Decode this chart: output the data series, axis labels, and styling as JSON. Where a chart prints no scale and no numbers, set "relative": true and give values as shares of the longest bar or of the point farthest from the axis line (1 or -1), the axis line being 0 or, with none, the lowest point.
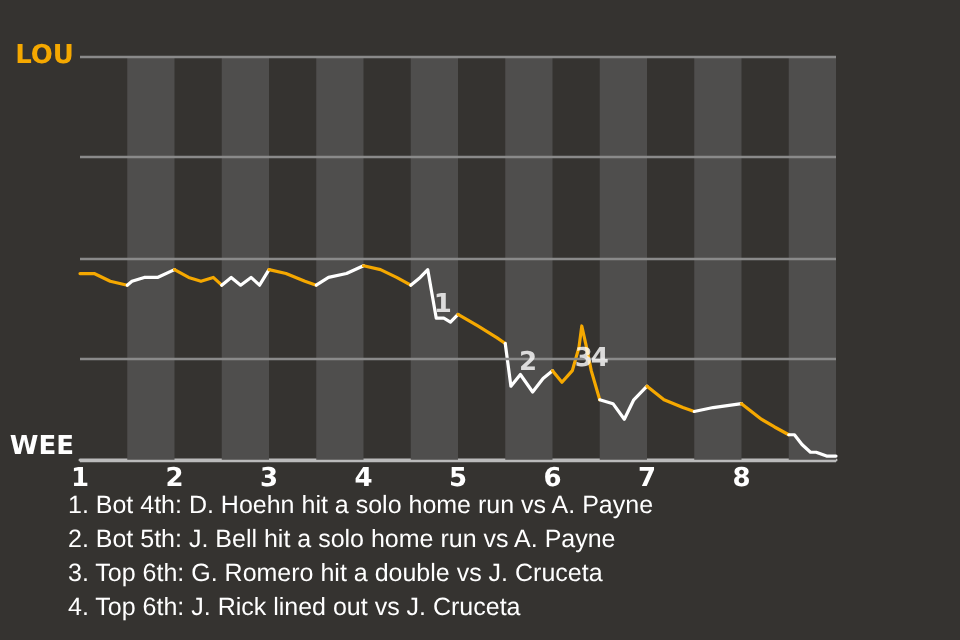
{
  "chart_data": {
    "type": "line",
    "relative": true,
    "xlim": [
      1,
      9
    ],
    "xticks": [
      1,
      2,
      3,
      4,
      5,
      6,
      7,
      8
    ],
    "ref_lines": [
      {
        "axis": "y",
        "value": 2.08,
        "label": "LOU",
        "color": "#8a8a8a"
      },
      {
        "axis": "y",
        "value": 1.56,
        "label": null,
        "color": "#8a8a8a"
      },
      {
        "axis": "y",
        "value": 1.04,
        "label": null,
        "color": "#8a8a8a"
      },
      {
        "axis": "y",
        "value": 0.52,
        "label": null,
        "color": "#8a8a8a"
      },
      {
        "axis": "y",
        "value": 0,
        "label": "WEE",
        "color": "#bbbbbb"
      }
    ],
    "series": [
      {
        "color": "#f5a800",
        "x": [
          1,
          1.15,
          1.32,
          1.5
        ],
        "values": [
          0.96,
          0.96,
          0.92,
          0.9
        ]
      },
      {
        "color": "#ffffff",
        "x": [
          1.5,
          1.55,
          1.68,
          1.82,
          2
        ],
        "values": [
          0.9,
          0.92,
          0.94,
          0.94,
          0.98
        ]
      },
      {
        "color": "#f5a800",
        "x": [
          2,
          2.15,
          2.28,
          2.41,
          2.5
        ],
        "values": [
          0.98,
          0.94,
          0.92,
          0.94,
          0.9
        ]
      },
      {
        "color": "#ffffff",
        "x": [
          2.5,
          2.6,
          2.7,
          2.81,
          2.9,
          3
        ],
        "values": [
          0.9,
          0.94,
          0.9,
          0.94,
          0.9,
          0.98
        ]
      },
      {
        "color": "#f5a800",
        "x": [
          3,
          3.18,
          3.38,
          3.5
        ],
        "values": [
          0.98,
          0.96,
          0.92,
          0.9
        ]
      },
      {
        "color": "#ffffff",
        "x": [
          3.5,
          3.63,
          3.82,
          4
        ],
        "values": [
          0.9,
          0.94,
          0.96,
          1
        ]
      },
      {
        "color": "#f5a800",
        "x": [
          4,
          4.18,
          4.35,
          4.5
        ],
        "values": [
          1,
          0.98,
          0.94,
          0.9
        ]
      },
      {
        "color": "#ffffff",
        "x": [
          4.5,
          4.6,
          4.68,
          4.77,
          4.85,
          4.92,
          5
        ],
        "values": [
          0.9,
          0.94,
          0.98,
          0.73,
          0.73,
          0.71,
          0.75
        ]
      },
      {
        "color": "#f5a800",
        "x": [
          5,
          5.21,
          5.41,
          5.5
        ],
        "values": [
          0.75,
          0.69,
          0.63,
          0.6
        ]
      },
      {
        "color": "#ffffff",
        "x": [
          5.5,
          5.56,
          5.66,
          5.79,
          5.9,
          6
        ],
        "values": [
          0.6,
          0.38,
          0.44,
          0.35,
          0.42,
          0.46
        ]
      },
      {
        "color": "#f5a800",
        "x": [
          6,
          6.1,
          6.21,
          6.28,
          6.31,
          6.36,
          6.41,
          6.5
        ],
        "values": [
          0.46,
          0.4,
          0.46,
          0.58,
          0.69,
          0.58,
          0.46,
          0.31
        ]
      },
      {
        "color": "#ffffff",
        "x": [
          6.5,
          6.64,
          6.76,
          6.86,
          7
        ],
        "values": [
          0.31,
          0.29,
          0.21,
          0.31,
          0.38
        ]
      },
      {
        "color": "#f5a800",
        "x": [
          7,
          7.18,
          7.38,
          7.5
        ],
        "values": [
          0.38,
          0.31,
          0.27,
          0.25
        ]
      },
      {
        "color": "#ffffff",
        "x": [
          7.5,
          7.7,
          8
        ],
        "values": [
          0.25,
          0.27,
          0.29
        ]
      },
      {
        "color": "#f5a800",
        "x": [
          8,
          8.21,
          8.35,
          8.5
        ],
        "values": [
          0.29,
          0.21,
          0.17,
          0.13
        ]
      },
      {
        "color": "#ffffff",
        "x": [
          8.5,
          8.56,
          8.64,
          8.73,
          8.79,
          8.9,
          9
        ],
        "values": [
          0.13,
          0.13,
          0.08,
          0.04,
          0.04,
          0.02,
          0.02
        ]
      }
    ],
    "bands": [
      {
        "axis": "x",
        "from": 1.5,
        "to": 2,
        "color": "#4f4e4d"
      },
      {
        "axis": "x",
        "from": 2.5,
        "to": 3,
        "color": "#4f4e4d"
      },
      {
        "axis": "x",
        "from": 3.5,
        "to": 4,
        "color": "#4f4e4d"
      },
      {
        "axis": "x",
        "from": 4.5,
        "to": 5,
        "color": "#4f4e4d"
      },
      {
        "axis": "x",
        "from": 5.5,
        "to": 6,
        "color": "#4f4e4d"
      },
      {
        "axis": "x",
        "from": 6.5,
        "to": 7,
        "color": "#4f4e4d"
      },
      {
        "axis": "x",
        "from": 7.5,
        "to": 8,
        "color": "#4f4e4d"
      },
      {
        "axis": "x",
        "from": 8.5,
        "to": 9,
        "color": "#4f4e4d"
      }
    ],
    "annotations": [
      {
        "text": "1",
        "x": 4.84,
        "y": 0.8
      },
      {
        "text": "2",
        "x": 5.74,
        "y": 0.5
      },
      {
        "text": "3",
        "x": 6.33,
        "y": 0.52
      },
      {
        "text": "4",
        "x": 6.5,
        "y": 0.52
      },
      "1. Bot 4th: D. Hoehn hit a solo home run vs A. Payne",
      "2. Bot 5th: J. Bell hit a solo home run vs A. Payne",
      "3. Top 6th: G. Romero hit a double vs J. Cruceta",
      "4. Top 6th: J. Rick lined out vs J. Cruceta"
    ]
  }
}
